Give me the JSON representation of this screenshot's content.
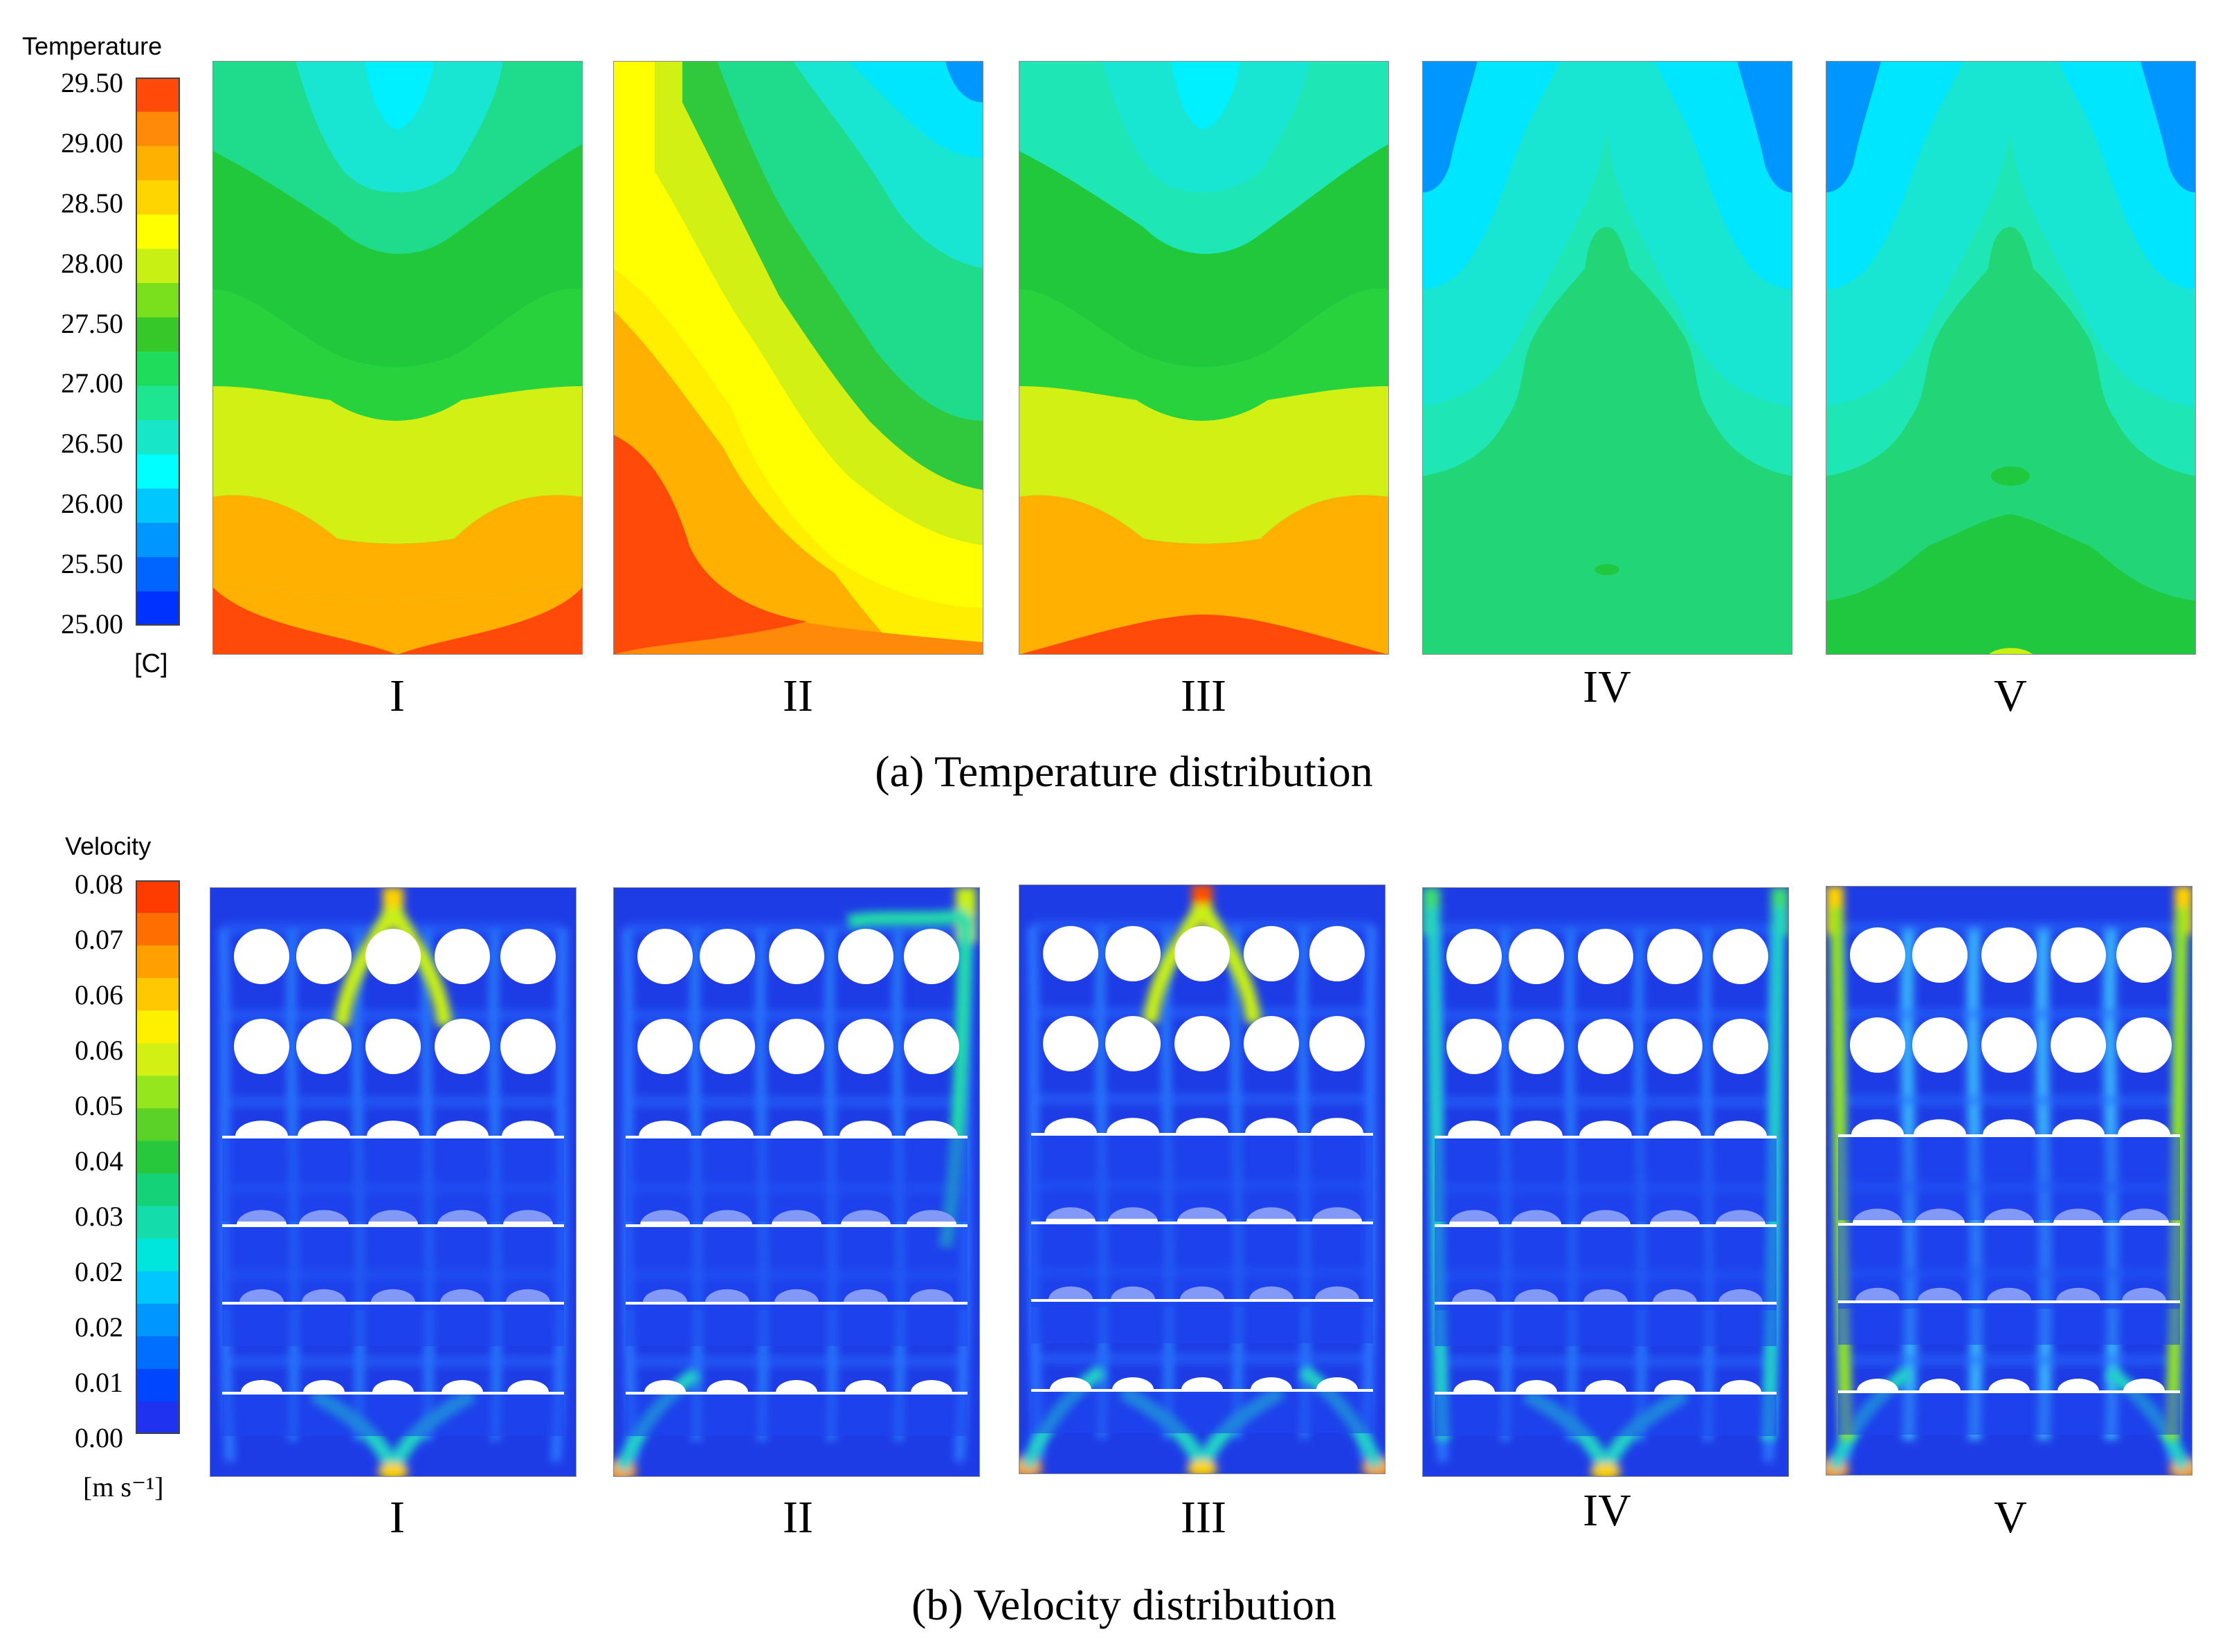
{
  "temperature_legend": {
    "title": "Temperature",
    "unit": "[C]",
    "ticks": [
      "29.50",
      "29.00",
      "28.50",
      "28.00",
      "27.50",
      "27.00",
      "26.50",
      "26.00",
      "25.50",
      "25.00"
    ],
    "colors": [
      "#ff4a0a",
      "#ff8a0a",
      "#ffb000",
      "#ffd500",
      "#ffff00",
      "#c8f014",
      "#7ae01e",
      "#36c828",
      "#1fdc5a",
      "#1ee690",
      "#18e6c8",
      "#00ffff",
      "#00c8ff",
      "#0096ff",
      "#0064ff",
      "#0032ff"
    ]
  },
  "velocity_legend": {
    "title": "Velocity",
    "unit": "[m s⁻¹]",
    "ticks": [
      "0.08",
      "0.07",
      "0.06",
      "0.06",
      "0.05",
      "0.04",
      "0.03",
      "0.02",
      "0.02",
      "0.01",
      "0.00"
    ],
    "colors": [
      "#ff3c00",
      "#ff6e00",
      "#ffa000",
      "#ffc800",
      "#fff000",
      "#d2f014",
      "#96e61e",
      "#5ad228",
      "#28c83c",
      "#14d278",
      "#14dcaa",
      "#00e6dc",
      "#00c8ff",
      "#0096ff",
      "#006eff",
      "#0046ff",
      "#1e32f0"
    ]
  },
  "panels_a": [
    "I",
    "II",
    "III",
    "IV",
    "V"
  ],
  "panels_b": [
    "I",
    "II",
    "III",
    "IV",
    "V"
  ],
  "captions": {
    "a": "(a) Temperature distribution",
    "b": "(b) Velocity distribution"
  }
}
